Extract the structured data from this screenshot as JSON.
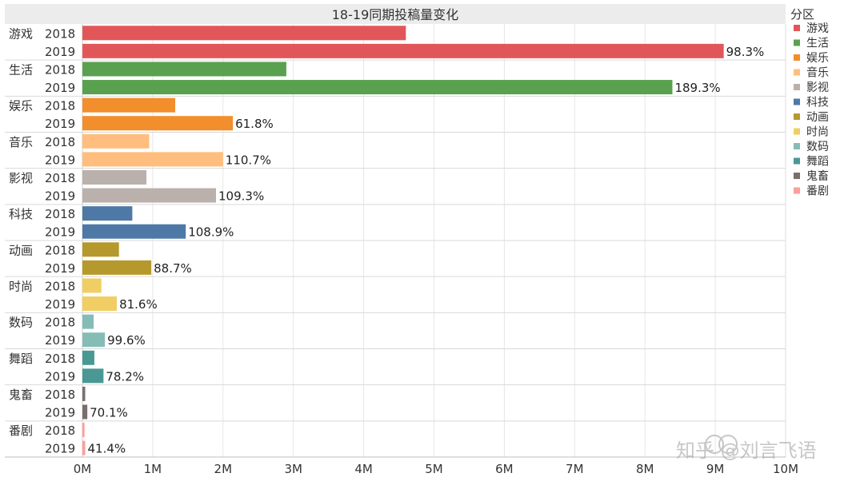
{
  "chart_data": {
    "type": "bar",
    "orientation": "horizontal",
    "title": "18-19同期投稿量变化",
    "legend_title": "分区",
    "legend_placement": "right",
    "grid": true,
    "x_unit": "M",
    "xlim": [
      0,
      10
    ],
    "x_ticks": [
      {
        "value": 0,
        "label": "0M"
      },
      {
        "value": 1,
        "label": "1M"
      },
      {
        "value": 2,
        "label": "2M"
      },
      {
        "value": 3,
        "label": "3M"
      },
      {
        "value": 4,
        "label": "4M"
      },
      {
        "value": 5,
        "label": "5M"
      },
      {
        "value": 6,
        "label": "6M"
      },
      {
        "value": 7,
        "label": "7M"
      },
      {
        "value": 8,
        "label": "8M"
      },
      {
        "value": 9,
        "label": "9M"
      },
      {
        "value": 10,
        "label": "10M"
      }
    ],
    "years": [
      "2018",
      "2019"
    ],
    "categories": [
      {
        "name": "游戏",
        "color": "#e15759",
        "v2018": 4.6,
        "v2019": 9.12,
        "growth": "98.3%"
      },
      {
        "name": "生活",
        "color": "#59a14f",
        "v2018": 2.9,
        "v2019": 8.39,
        "growth": "189.3%"
      },
      {
        "name": "娱乐",
        "color": "#f28e2b",
        "v2018": 1.32,
        "v2019": 2.14,
        "growth": "61.8%"
      },
      {
        "name": "音乐",
        "color": "#ffbe7d",
        "v2018": 0.95,
        "v2019": 2.0,
        "growth": "110.7%"
      },
      {
        "name": "影视",
        "color": "#bab0ac",
        "v2018": 0.91,
        "v2019": 1.9,
        "growth": "109.3%"
      },
      {
        "name": "科技",
        "color": "#4e79a7",
        "v2018": 0.71,
        "v2019": 1.47,
        "growth": "108.9%"
      },
      {
        "name": "动画",
        "color": "#b6992d",
        "v2018": 0.52,
        "v2019": 0.98,
        "growth": "88.7%"
      },
      {
        "name": "时尚",
        "color": "#f1ce63",
        "v2018": 0.27,
        "v2019": 0.49,
        "growth": "81.6%"
      },
      {
        "name": "数码",
        "color": "#86bcb6",
        "v2018": 0.16,
        "v2019": 0.32,
        "growth": "99.6%"
      },
      {
        "name": "舞蹈",
        "color": "#499894",
        "v2018": 0.17,
        "v2019": 0.3,
        "growth": "78.2%"
      },
      {
        "name": "鬼畜",
        "color": "#79706e",
        "v2018": 0.04,
        "v2019": 0.07,
        "growth": "70.1%"
      },
      {
        "name": "番剧",
        "color": "#ff9d9a",
        "v2018": 0.03,
        "v2019": 0.04,
        "growth": "41.4%"
      }
    ]
  },
  "watermark": "知乎 @刘言飞语"
}
